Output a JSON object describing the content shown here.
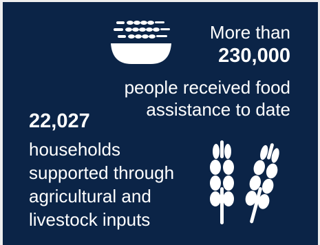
{
  "food": {
    "line1": "More than",
    "number": "230,000",
    "line2": "people received food",
    "line3": "assistance to date",
    "icon": "grain-bowl-icon"
  },
  "households": {
    "number": "22,027",
    "line1": "households",
    "line2": "supported through",
    "line3": "agricultural and",
    "line4": "livestock inputs",
    "icon": "wheat-icon"
  },
  "colors": {
    "background": "#0b2447",
    "text": "#ffffff"
  }
}
